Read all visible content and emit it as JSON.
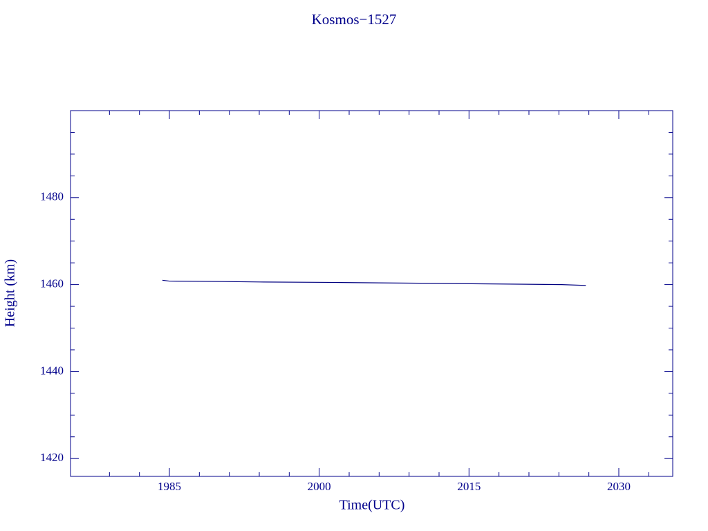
{
  "chart_data": {
    "type": "line",
    "title": "Kosmos−1527",
    "xlabel": "Time(UTC)",
    "ylabel": "Height (km)",
    "x": [
      1984.3,
      1985.0,
      1990.3,
      1994.0,
      2001.0,
      2006.0,
      2015.3,
      2024.3,
      2026.7
    ],
    "series": [
      {
        "name": "Kosmos−1527",
        "color": "#000080",
        "values": [
          1461.0,
          1460.8,
          1460.7,
          1460.6,
          1460.5,
          1460.4,
          1460.2,
          1460.0,
          1459.8
        ]
      }
    ],
    "xlim": [
      1975.1,
      2035.4
    ],
    "ylim": [
      1415.9,
      1500.0
    ],
    "xticks": [
      1985,
      2000,
      2015,
      2030
    ],
    "xminorticks": [
      1979,
      1982,
      1988,
      1991,
      1994,
      1997,
      2003,
      2006,
      2009,
      2012,
      2018,
      2021,
      2024,
      2027,
      2033
    ],
    "yticks": [
      1420,
      1440,
      1460,
      1480
    ],
    "yminorticks": [
      1425,
      1430,
      1435,
      1445,
      1450,
      1455,
      1465,
      1470,
      1475,
      1485,
      1490,
      1495
    ],
    "color": "#00008b"
  }
}
